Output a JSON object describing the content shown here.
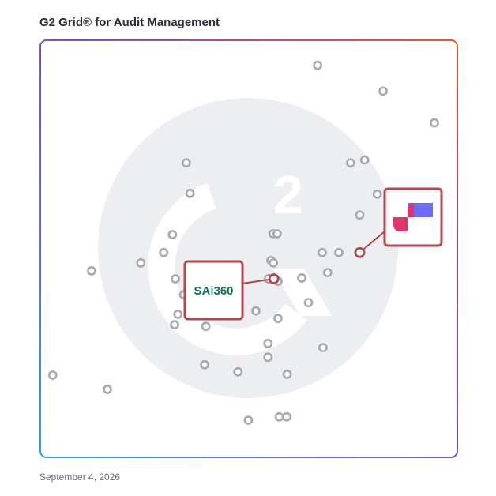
{
  "title": "G2 Grid® for Audit Management",
  "date": "September 4, 2026",
  "colors": {
    "dot": "#a6a9b2",
    "highlight": "#b2474d",
    "watermark": "#eceef2",
    "frame_left": "#3a7fd0",
    "frame_right": "#d84a3a",
    "divider_h": "#8060b0",
    "divider_v": "#9a70c0"
  },
  "chart_data": {
    "type": "scatter",
    "xlim": [
      0,
      100
    ],
    "ylim": [
      0,
      100
    ],
    "grid": false,
    "points": [
      {
        "x": 66.5,
        "y": 94.0
      },
      {
        "x": 82.2,
        "y": 87.8
      },
      {
        "x": 94.5,
        "y": 80.2
      },
      {
        "x": 74.4,
        "y": 70.6
      },
      {
        "x": 77.8,
        "y": 71.3
      },
      {
        "x": 35.0,
        "y": 70.6
      },
      {
        "x": 35.9,
        "y": 63.3
      },
      {
        "x": 80.8,
        "y": 63.1
      },
      {
        "x": 76.6,
        "y": 58.1
      },
      {
        "x": 31.7,
        "y": 53.4
      },
      {
        "x": 55.8,
        "y": 53.6
      },
      {
        "x": 56.8,
        "y": 53.6
      },
      {
        "x": 29.6,
        "y": 49.1
      },
      {
        "x": 67.6,
        "y": 49.1
      },
      {
        "x": 71.6,
        "y": 49.1
      },
      {
        "x": 24.1,
        "y": 46.6
      },
      {
        "x": 55.3,
        "y": 47.2
      },
      {
        "x": 55.9,
        "y": 46.6
      },
      {
        "x": 12.3,
        "y": 44.7
      },
      {
        "x": 54.7,
        "y": 42.8
      },
      {
        "x": 57.0,
        "y": 42.2
      },
      {
        "x": 32.4,
        "y": 42.8
      },
      {
        "x": 62.7,
        "y": 43.0
      },
      {
        "x": 68.9,
        "y": 44.3
      },
      {
        "x": 34.4,
        "y": 39.0
      },
      {
        "x": 64.3,
        "y": 37.1
      },
      {
        "x": 33.0,
        "y": 34.3
      },
      {
        "x": 46.5,
        "y": 34.3
      },
      {
        "x": 51.7,
        "y": 35.1
      },
      {
        "x": 57.0,
        "y": 33.3
      },
      {
        "x": 32.2,
        "y": 31.8
      },
      {
        "x": 39.7,
        "y": 31.4
      },
      {
        "x": 54.6,
        "y": 27.3
      },
      {
        "x": 67.8,
        "y": 26.3
      },
      {
        "x": 54.6,
        "y": 24.0
      },
      {
        "x": 39.4,
        "y": 22.2
      },
      {
        "x": 47.4,
        "y": 20.5
      },
      {
        "x": 59.2,
        "y": 19.9
      },
      {
        "x": 3.0,
        "y": 19.7
      },
      {
        "x": 16.1,
        "y": 16.3
      },
      {
        "x": 49.9,
        "y": 8.9
      },
      {
        "x": 57.3,
        "y": 9.7
      },
      {
        "x": 59.1,
        "y": 9.7
      }
    ],
    "highlighted": [
      {
        "x": 76.6,
        "y": 49.1,
        "logo": "blue-magenta-logo"
      },
      {
        "x": 56.0,
        "y": 42.8,
        "logo": "SAi360"
      }
    ]
  }
}
